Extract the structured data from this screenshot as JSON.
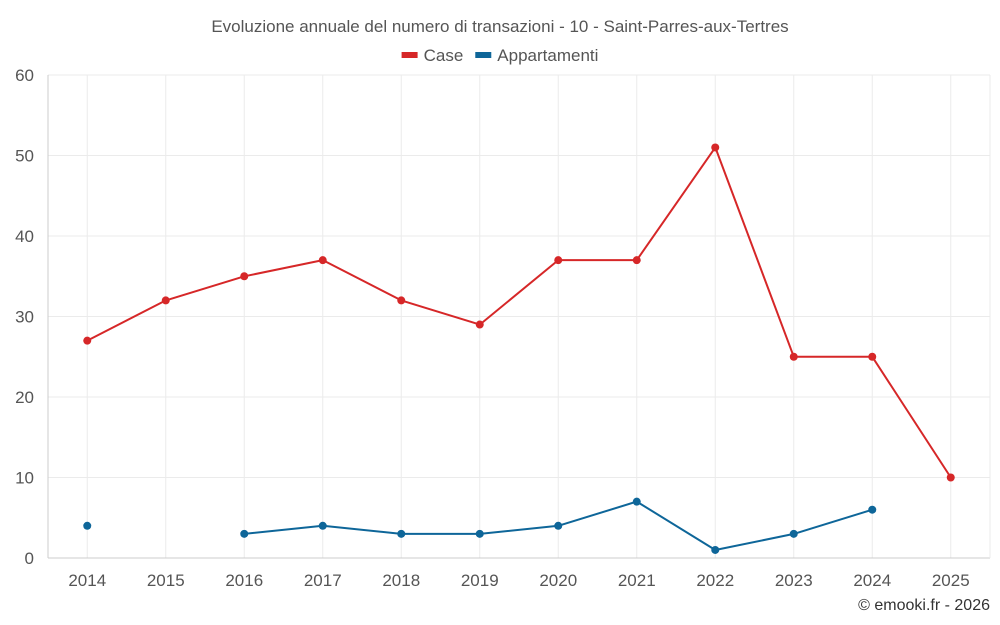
{
  "chart_data": {
    "type": "line",
    "title": "Evoluzione annuale del numero di transazioni - 10 - Saint-Parres-aux-Tertres",
    "categories": [
      "2014",
      "2015",
      "2016",
      "2017",
      "2018",
      "2019",
      "2020",
      "2021",
      "2022",
      "2023",
      "2024",
      "2025"
    ],
    "series": [
      {
        "name": "Case",
        "color": "#d62728",
        "values": [
          27,
          32,
          35,
          37,
          32,
          29,
          37,
          37,
          51,
          25,
          25,
          10
        ]
      },
      {
        "name": "Appartamenti",
        "color": "#0e6699",
        "values": [
          4,
          null,
          3,
          4,
          3,
          3,
          4,
          7,
          1,
          3,
          6,
          null
        ]
      }
    ],
    "ylim": [
      0,
      60
    ],
    "yticks": [
      0,
      10,
      20,
      30,
      40,
      50,
      60
    ],
    "xlabel": "",
    "ylabel": "",
    "grid": true,
    "legend": "top-center"
  },
  "credit": "© emooki.fr - 2026"
}
